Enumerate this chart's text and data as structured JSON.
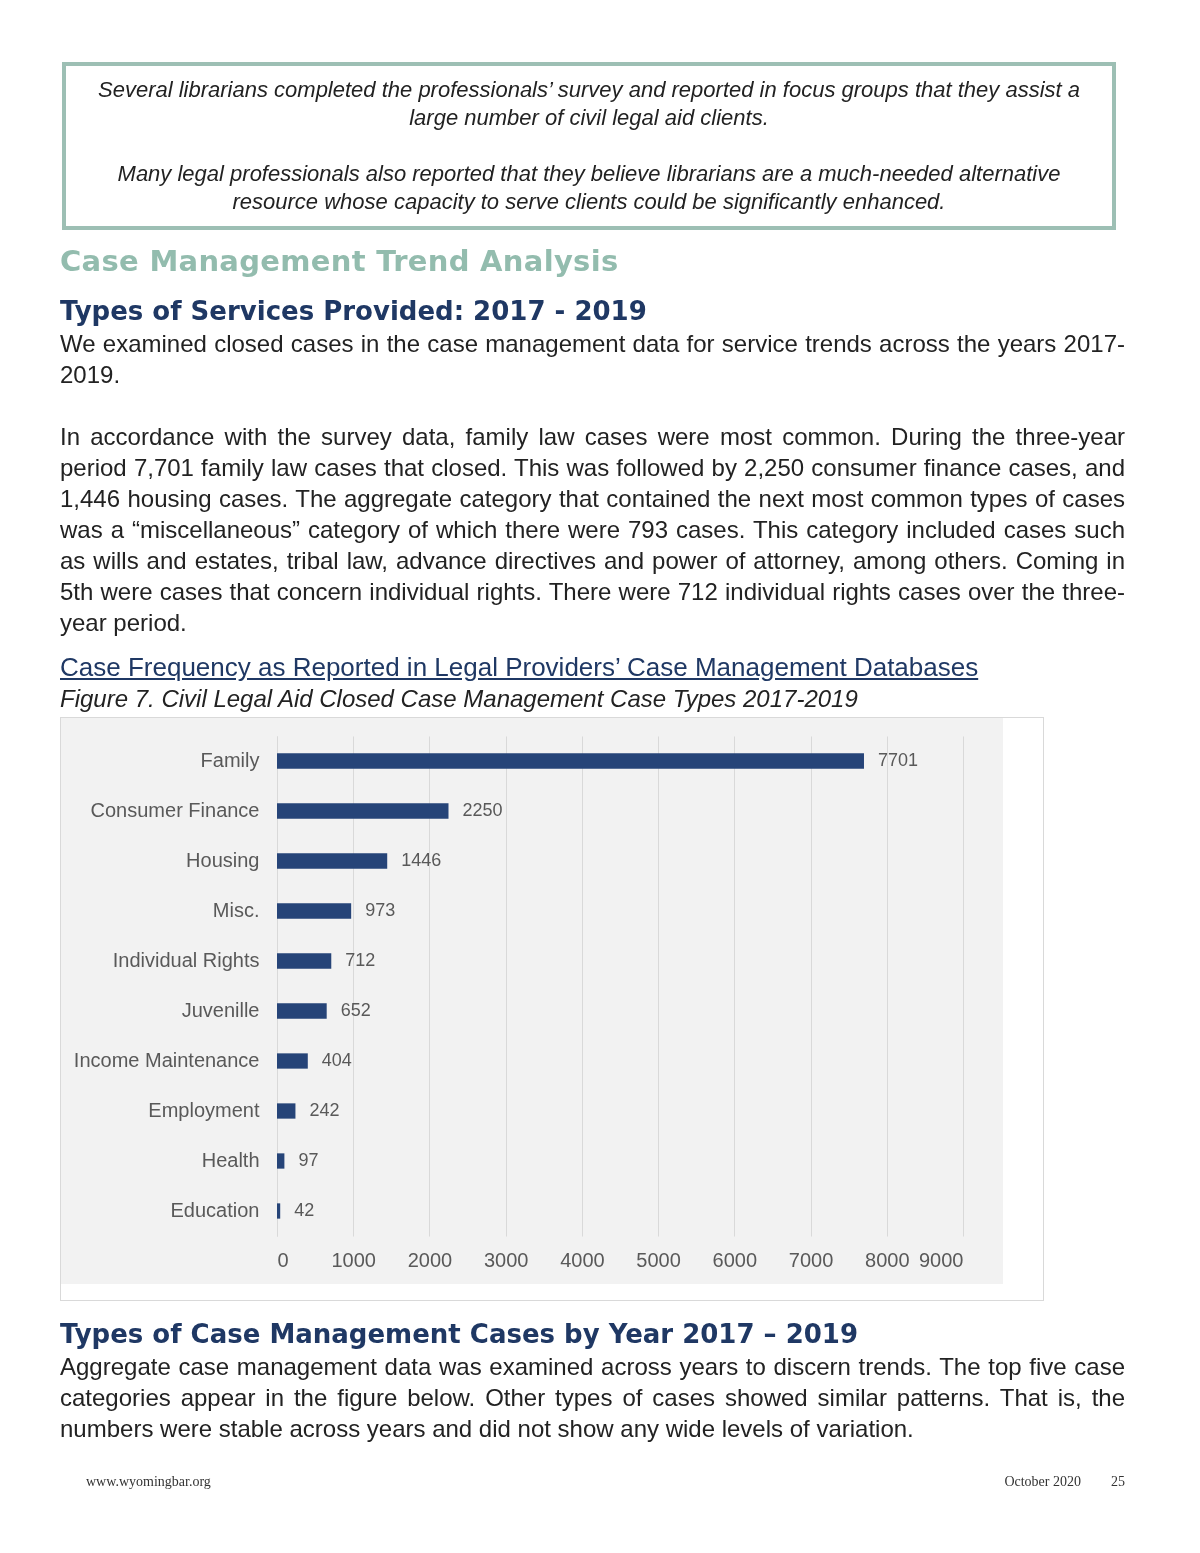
{
  "chart_data": {
    "type": "bar",
    "orientation": "horizontal",
    "title": "Case Frequency as Reported in Legal Providers’ Case Management Databases",
    "subtitle": "Figure 7. Civil Legal Aid Closed Case Management Case Types 2017-2019",
    "categories": [
      "Family",
      "Consumer Finance",
      "Housing",
      "Misc.",
      "Individual Rights",
      "Juvenille",
      "Income Maintenance",
      "Employment",
      "Health",
      "Education"
    ],
    "values": [
      7701,
      2250,
      1446,
      973,
      712,
      652,
      404,
      242,
      97,
      42
    ],
    "color": "#264478",
    "data_labels": true,
    "grid": "x",
    "xlim": [
      0,
      9000
    ],
    "xticks": [
      0,
      1000,
      2000,
      3000,
      4000,
      5000,
      6000,
      7000,
      8000,
      9000
    ],
    "annotations": [
      "Several librarians completed the professionals’ survey and reported in focus groups that they assist a large number of civil legal aid clients.",
      "Many legal professionals also reported that they believe librarians are a much-needed alternative resource whose capacity to serve clients could be significantly enhanced.",
      "Case Management Trend Analysis",
      "Types of Services Provided: 2017 - 2019",
      "We examined closed cases in the case management data for service trends across the years 2017-2019.",
      "In accordance with the survey data, family law cases were most common. During the three-year period 7,701 family law cases that closed. This was followed by 2,250 consumer finance cases, and 1,446 housing cases. The aggregate category that contained the next most common types of cases was a “miscellaneous” category of which there were 793 cases. This category included cases such as wills and estates, tribal law, advance directives and power of attorney, among others.  Coming in 5th were cases that concern individual rights. There were 712 individual rights cases over the three-year period.",
      "Types of Case Management Cases by Year 2017 – 2019",
      "Aggregate case management data was examined across years to discern trends. The top five case categories appear in the figure below. Other types of cases showed similar patterns.  That is, the numbers were stable across years and did not show any wide levels of variation.",
      "www.wyomingbar.org",
      "October 2020",
      "25"
    ]
  }
}
